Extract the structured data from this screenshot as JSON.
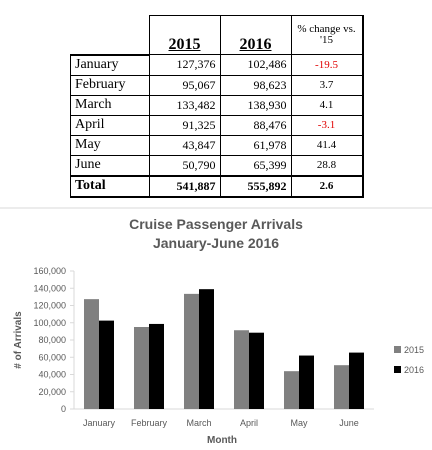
{
  "table": {
    "headers": [
      "2015",
      "2016",
      "% change vs. '15"
    ],
    "rows": [
      [
        "January",
        "127,376",
        "102,486",
        "-19.5"
      ],
      [
        "February",
        "95,067",
        "98,623",
        "3.7"
      ],
      [
        "March",
        "133,482",
        "138,930",
        "4.1"
      ],
      [
        "April",
        "91,325",
        "88,476",
        "-3.1"
      ],
      [
        "May",
        "43,847",
        "61,978",
        "41.4"
      ],
      [
        "June",
        "50,790",
        "65,399",
        "28.8"
      ],
      [
        "Total",
        "541,887",
        "555,892",
        "2.6"
      ]
    ]
  },
  "chart_data": {
    "type": "bar",
    "title": "Cruise Passenger Arrivals",
    "subtitle": "January-June 2016",
    "x_label": "Month",
    "y_label": "# of Arrivals",
    "categories": [
      "January",
      "February",
      "March",
      "April",
      "May",
      "June"
    ],
    "series": [
      {
        "name": "2015",
        "color": "#808080",
        "values": [
          127376,
          95067,
          133482,
          91325,
          43847,
          50790
        ]
      },
      {
        "name": "2016",
        "color": "#000000",
        "values": [
          102486,
          98623,
          138930,
          88476,
          61978,
          65399
        ]
      }
    ],
    "ylim": [
      0,
      160000
    ],
    "yticks": [
      0,
      {
        "value": 20000,
        "label": "20,000"
      },
      {
        "value": 40000,
        "label": "40,000"
      },
      {
        "value": 60000,
        "label": "60,000"
      },
      {
        "value": 80000,
        "label": "80,000"
      },
      {
        "value": 100000,
        "label": "100,000"
      },
      {
        "value": 120000,
        "label": "120,000"
      },
      {
        "value": 140000,
        "label": "140,000"
      },
      {
        "value": 160000,
        "label": "160,000"
      }
    ],
    "legend": "right"
  }
}
